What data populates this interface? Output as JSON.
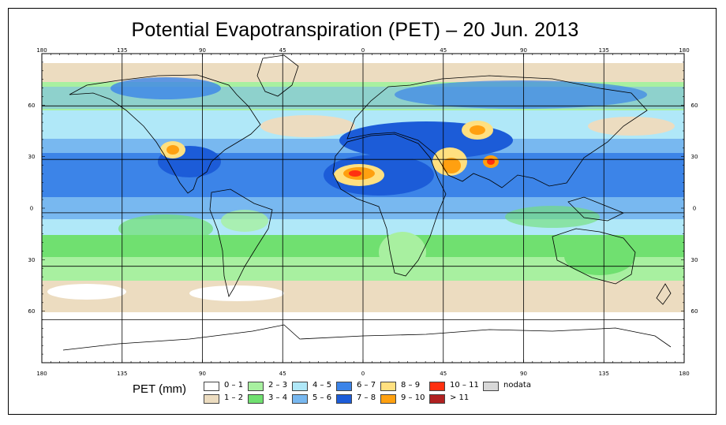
{
  "title": "Potential Evapotranspiration (PET) – 20 Jun. 2013",
  "map": {
    "x_tick_labels": [
      "180",
      "135",
      "90",
      "45",
      "0",
      "45",
      "90",
      "135",
      "180"
    ],
    "y_tick_labels": [
      "60",
      "30",
      "0",
      "30",
      "60"
    ],
    "lon_ticks": [
      -180,
      -135,
      -90,
      -45,
      0,
      45,
      90,
      135,
      180
    ],
    "lat_ticks": [
      60,
      30,
      0,
      -30,
      -60
    ]
  },
  "legend": {
    "title": "PET (mm)",
    "items": [
      {
        "label": "0 – 1",
        "color": "#ffffff"
      },
      {
        "label": "1 – 2",
        "color": "#ecdcc0"
      },
      {
        "label": "2 – 3",
        "color": "#a8f0a0"
      },
      {
        "label": "3 – 4",
        "color": "#70e070"
      },
      {
        "label": "4 – 5",
        "color": "#b0e8f8"
      },
      {
        "label": "5 – 6",
        "color": "#78b8f0"
      },
      {
        "label": "6 – 7",
        "color": "#3c84e8"
      },
      {
        "label": "7 – 8",
        "color": "#1c5cd8"
      },
      {
        "label": "8 – 9",
        "color": "#ffe080"
      },
      {
        "label": "9 – 10",
        "color": "#ffa010"
      },
      {
        "label": "10 – 11",
        "color": "#ff3010"
      },
      {
        "label": "> 11",
        "color": "#b02020"
      },
      {
        "label": "nodata",
        "color": "#d8d8d8"
      }
    ]
  }
}
